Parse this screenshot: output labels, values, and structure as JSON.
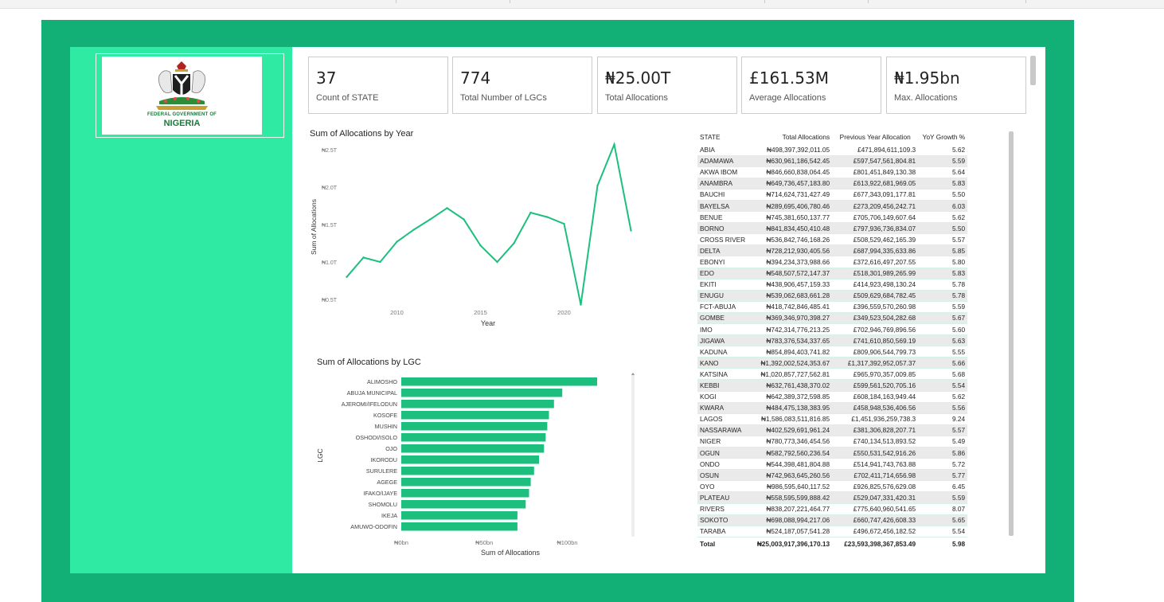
{
  "logo": {
    "line1": "FEDERAL GOVERNMENT OF",
    "line2": "NIGERIA",
    "icon": "nigeria-coat-of-arms-icon",
    "colors": {
      "green": "#1a7a3a",
      "red": "#c0392b",
      "eagle": "#b22222"
    }
  },
  "cards": [
    {
      "value": "37",
      "label": "Count of STATE"
    },
    {
      "value": "774",
      "label": "Total Number of LGCs"
    },
    {
      "value": "₦25.00T",
      "label": "Total Allocations"
    },
    {
      "value": "£161.53M",
      "label": "Average Allocations"
    },
    {
      "value": "₦1.95bn",
      "label": "Max. Allocations"
    }
  ],
  "colors": {
    "accent": "#12b077",
    "sidebar": "#2eeaa2",
    "series": "#1dbf7e"
  },
  "charts": {
    "line": {
      "title": "Sum of Allocations by Year",
      "xlabel": "Year",
      "ylabel": "Sum of Allocations",
      "y_ticks": [
        "₦0.5T",
        "₦1.0T",
        "₦1.5T",
        "₦2.0T",
        "₦2.5T"
      ],
      "x_ticks": [
        "2010",
        "2015",
        "2020"
      ]
    },
    "bar": {
      "title": "Sum of Allocations by LGC",
      "xlabel": "Sum of Allocations",
      "ylabel": "LGC",
      "x_ticks": [
        "₦0bn",
        "₦50bn",
        "₦100bn"
      ]
    }
  },
  "chart_data": [
    {
      "type": "line",
      "title": "Sum of Allocations by Year",
      "xlabel": "Year",
      "ylabel": "Sum of Allocations",
      "x": [
        2007,
        2008,
        2009,
        2010,
        2011,
        2012,
        2013,
        2014,
        2015,
        2016,
        2017,
        2018,
        2019,
        2020,
        2021,
        2022,
        2023,
        2024
      ],
      "values": [
        0.8,
        1.06,
        1.0,
        1.27,
        1.43,
        1.57,
        1.72,
        1.57,
        1.22,
        1.0,
        1.25,
        1.66,
        1.6,
        1.51,
        0.43,
        2.02,
        2.57,
        1.42
      ],
      "unit": "T",
      "xlim": [
        2006.5,
        2024.5
      ],
      "ylim": [
        0.5,
        2.5
      ],
      "grid": false
    },
    {
      "type": "bar",
      "orientation": "horizontal",
      "title": "Sum of Allocations by LGC",
      "xlabel": "Sum of Allocations",
      "ylabel": "LGC",
      "categories": [
        "ALIMOSHO",
        "ABUJA MUNICIPAL",
        "AJEROMI/IFELODUN",
        "KOSOFE",
        "MUSHIN",
        "OSHODI/ISOLO",
        "OJO",
        "IKORODU",
        "SURULERE",
        "AGEGE",
        "IFAKO/IJAYE",
        "SHOMOLU",
        "IKEJA",
        "AMUWO-ODOFIN"
      ],
      "values": [
        118,
        97,
        92,
        89,
        88,
        87,
        86,
        83,
        80,
        78,
        77,
        75,
        70,
        70
      ],
      "unit": "bn",
      "xlim": [
        0,
        130
      ]
    }
  ],
  "table": {
    "headers": [
      "STATE",
      "Total Allocations",
      "Previous Year Allocation",
      "YoY Growth %"
    ],
    "rows": [
      [
        "ABIA",
        "₦498,397,392,011.05",
        "£471,894,611,109.3",
        "5.62"
      ],
      [
        "ADAMAWA",
        "₦630,961,186,542.45",
        "£597,547,561,804.81",
        "5.59"
      ],
      [
        "AKWA IBOM",
        "₦846,660,838,064.45",
        "£801,451,849,130.38",
        "5.64"
      ],
      [
        "ANAMBRA",
        "₦649,736,457,183.80",
        "£613,922,681,969.05",
        "5.83"
      ],
      [
        "BAUCHI",
        "₦714,624,731,427.49",
        "£677,343,091,177.81",
        "5.50"
      ],
      [
        "BAYELSA",
        "₦289,695,406,780.46",
        "£273,209,456,242.71",
        "6.03"
      ],
      [
        "BENUE",
        "₦745,381,650,137.77",
        "£705,706,149,607.64",
        "5.62"
      ],
      [
        "BORNO",
        "₦841,834,450,410.48",
        "£797,936,736,834.07",
        "5.50"
      ],
      [
        "CROSS RIVER",
        "₦536,842,746,168.26",
        "£508,529,462,165.39",
        "5.57"
      ],
      [
        "DELTA",
        "₦728,212,930,405.56",
        "£687,994,335,633.86",
        "5.85"
      ],
      [
        "EBONYI",
        "₦394,234,373,988.66",
        "£372,616,497,207.55",
        "5.80"
      ],
      [
        "EDO",
        "₦548,507,572,147.37",
        "£518,301,989,265.99",
        "5.83"
      ],
      [
        "EKITI",
        "₦438,906,457,159.33",
        "£414,923,498,130.24",
        "5.78"
      ],
      [
        "ENUGU",
        "₦539,062,683,661.28",
        "£509,629,684,782.45",
        "5.78"
      ],
      [
        "FCT-ABUJA",
        "₦418,742,846,485.41",
        "£396,559,570,260.98",
        "5.59"
      ],
      [
        "GOMBE",
        "₦369,346,970,398.27",
        "£349,523,504,282.68",
        "5.67"
      ],
      [
        "IMO",
        "₦742,314,776,213.25",
        "£702,946,769,896.56",
        "5.60"
      ],
      [
        "JIGAWA",
        "₦783,376,534,337.65",
        "£741,610,850,569.19",
        "5.63"
      ],
      [
        "KADUNA",
        "₦854,894,403,741.82",
        "£809,906,544,799.73",
        "5.55"
      ],
      [
        "KANO",
        "₦1,392,002,524,353.67",
        "£1,317,392,952,057.37",
        "5.66"
      ],
      [
        "KATSINA",
        "₦1,020,857,727,562.81",
        "£965,970,357,009.85",
        "5.68"
      ],
      [
        "KEBBI",
        "₦632,761,438,370.02",
        "£599,561,520,705.16",
        "5.54"
      ],
      [
        "KOGI",
        "₦642,389,372,598.85",
        "£608,184,163,949.44",
        "5.62"
      ],
      [
        "KWARA",
        "₦484,475,138,383.95",
        "£458,948,536,406.56",
        "5.56"
      ],
      [
        "LAGOS",
        "₦1,586,083,511,816.85",
        "£1,451,936,259,738.3",
        "9.24"
      ],
      [
        "NASSARAWA",
        "₦402,529,691,961.24",
        "£381,306,828,207.71",
        "5.57"
      ],
      [
        "NIGER",
        "₦780,773,346,454.56",
        "£740,134,513,893.52",
        "5.49"
      ],
      [
        "OGUN",
        "₦582,792,560,236.54",
        "£550,531,542,916.26",
        "5.86"
      ],
      [
        "ONDO",
        "₦544,398,481,804.88",
        "£514,941,743,763.88",
        "5.72"
      ],
      [
        "OSUN",
        "₦742,963,645,260.56",
        "£702,411,714,656.98",
        "5.77"
      ],
      [
        "OYO",
        "₦986,595,640,117.52",
        "£926,825,576,629.08",
        "6.45"
      ],
      [
        "PLATEAU",
        "₦558,595,599,888.42",
        "£529,047,331,420.31",
        "5.59"
      ],
      [
        "RIVERS",
        "₦838,207,221,464.77",
        "£775,640,960,541.65",
        "8.07"
      ],
      [
        "SOKOTO",
        "₦698,088,994,217.06",
        "£660,747,426,608.33",
        "5.65"
      ],
      [
        "TARABA",
        "₦524,187,057,541.28",
        "£496,672,456,182.52",
        "5.54"
      ]
    ],
    "total": [
      "Total",
      "₦25,003,917,396,170.13",
      "£23,593,398,367,853.49",
      "5.98"
    ]
  }
}
